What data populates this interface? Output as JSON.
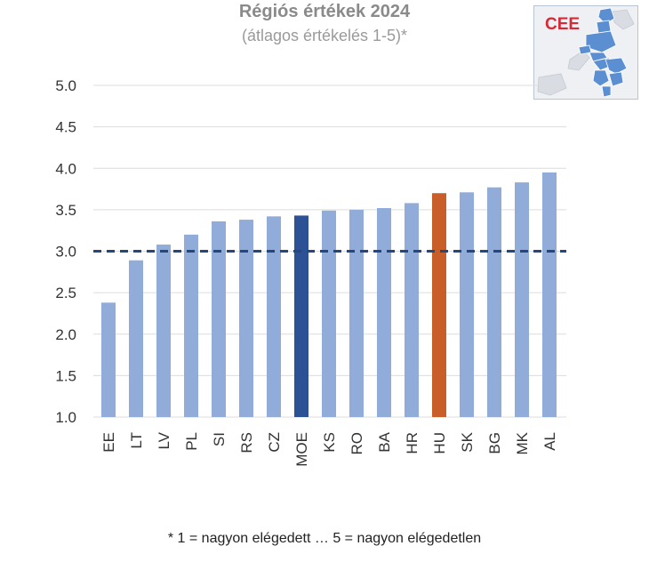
{
  "header": {
    "title": "Régiós értékek 2024",
    "subtitle": "(átlagos értékelés 1-5)*"
  },
  "inset": {
    "label": "CEE",
    "icon": "cee-region-map-icon"
  },
  "footnote": "* 1 = nagyon elégedett … 5 = nagyon elégedetlen",
  "colors": {
    "bar_default": "#91acd9",
    "bar_average": "#2c5295",
    "bar_highlight": "#c85f28",
    "reference_line": "#24487e",
    "grid": "#dcdcdc",
    "tick_text": "#333333"
  },
  "chart_data": {
    "type": "bar",
    "title": "Régiós értékek 2024",
    "subtitle": "(átlagos értékelés 1-5)*",
    "xlabel": "",
    "ylabel": "",
    "ylim": [
      1.0,
      5.0
    ],
    "yticks": [
      "1.0",
      "1.5",
      "2.0",
      "2.5",
      "3.0",
      "3.5",
      "4.0",
      "4.5",
      "5.0"
    ],
    "grid": true,
    "reference_line": 3.0,
    "categories": [
      "EE",
      "LT",
      "LV",
      "PL",
      "SI",
      "RS",
      "CZ",
      "MOE",
      "KS",
      "RO",
      "BA",
      "HR",
      "HU",
      "SK",
      "BG",
      "MK",
      "AL"
    ],
    "values": [
      2.38,
      2.89,
      3.08,
      3.2,
      3.36,
      3.38,
      3.42,
      3.43,
      3.49,
      3.5,
      3.52,
      3.58,
      3.7,
      3.71,
      3.77,
      3.83,
      3.95
    ],
    "average_category": "MOE",
    "highlight_category": "HU"
  }
}
